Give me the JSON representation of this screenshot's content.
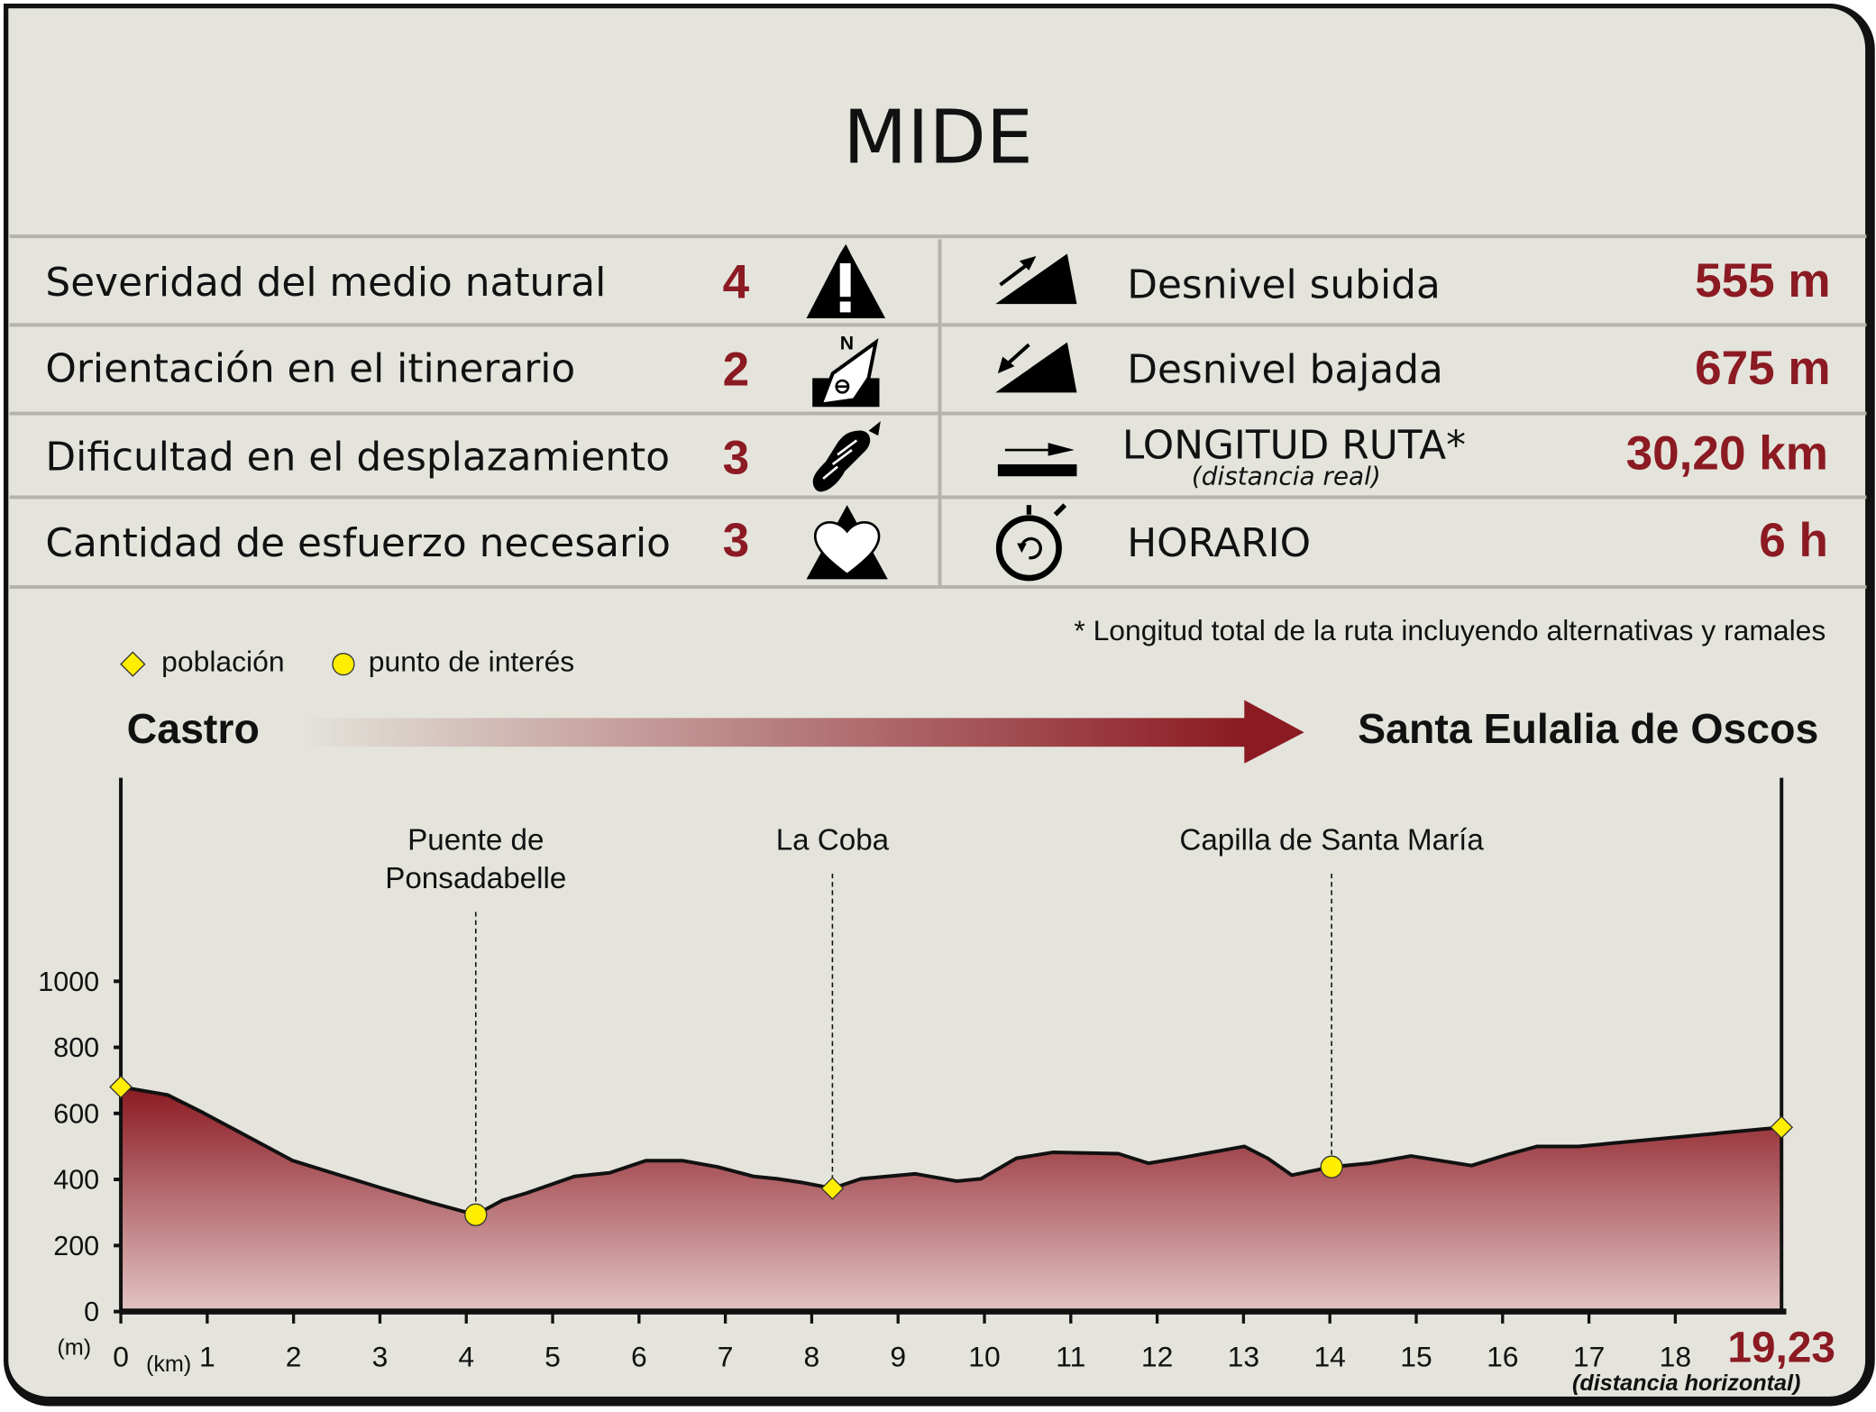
{
  "title": "MIDE",
  "mide": [
    {
      "label": "Severidad del medio natural",
      "value": "4",
      "icon": "warning-mountain-icon"
    },
    {
      "label": "Orientación en el itinerario",
      "value": "2",
      "icon": "compass-icon"
    },
    {
      "label": "Dificultad en el desplazamiento",
      "value": "3",
      "icon": "boot-sole-icon"
    },
    {
      "label": "Cantidad de esfuerzo necesario",
      "value": "3",
      "icon": "heart-mountain-icon"
    }
  ],
  "stats": [
    {
      "label": "Desnivel subida",
      "value": "555 m",
      "icon": "ascent-icon"
    },
    {
      "label": "Desnivel bajada",
      "value": "675 m",
      "icon": "descent-icon"
    },
    {
      "label": "LONGITUD RUTA*",
      "sublabel": "(distancia real)",
      "value": "30,20 km",
      "icon": "length-icon"
    },
    {
      "label": "HORARIO",
      "value": "6 h",
      "icon": "stopwatch-icon"
    }
  ],
  "footnote": "* Longitud total de la ruta incluyendo alternativas y ramales",
  "legend": {
    "town": "población",
    "poi": "punto de interés"
  },
  "route": {
    "start": "Castro",
    "end": "Santa Eulalia de Oscos"
  },
  "colors": {
    "accent": "#8b1a22",
    "background": "#e4e4dc",
    "marker": "#ffee00"
  },
  "chart_data": {
    "type": "area",
    "xlabel": "(km)",
    "ylabel": "(m)",
    "xlim": [
      0,
      19.23
    ],
    "ylim": [
      0,
      1000
    ],
    "xticks": [
      "0",
      "1",
      "2",
      "3",
      "4",
      "5",
      "6",
      "7",
      "8",
      "9",
      "10",
      "11",
      "12",
      "13",
      "14",
      "15",
      "16",
      "17",
      "18"
    ],
    "yticks": [
      "0",
      "200",
      "400",
      "600",
      "800",
      "1000"
    ],
    "x_end_label": "19,23",
    "x_end_sublabel": "(distancia horizontal)",
    "grid": false,
    "profile": {
      "x": [
        0,
        0.54,
        0.96,
        1.99,
        3.03,
        3.59,
        4.11,
        4.42,
        4.7,
        5.25,
        5.66,
        6.08,
        6.5,
        6.91,
        7.33,
        7.6,
        7.88,
        8.24,
        8.57,
        9.2,
        9.68,
        9.96,
        10.37,
        10.79,
        11.55,
        11.9,
        12.31,
        13.01,
        13.28,
        13.56,
        14.02,
        14.46,
        14.94,
        15.64,
        16.05,
        16.4,
        16.88,
        19.23
      ],
      "y": [
        680,
        656,
        601,
        457,
        373,
        330,
        293,
        337,
        359,
        409,
        420,
        457,
        457,
        438,
        409,
        402,
        391,
        373,
        402,
        417,
        395,
        402,
        464,
        482,
        478,
        449,
        467,
        500,
        464,
        413,
        438,
        449,
        471,
        442,
        475,
        500,
        500,
        558
      ]
    },
    "markers": [
      {
        "type": "población",
        "x": 0,
        "y": 680,
        "label": ""
      },
      {
        "type": "punto de interés",
        "x": 4.11,
        "y": 293,
        "label": "Puente de\nPonsadabelle"
      },
      {
        "type": "población",
        "x": 8.24,
        "y": 373,
        "label": "La Coba"
      },
      {
        "type": "punto de interés",
        "x": 14.02,
        "y": 438,
        "label": "Capilla de Santa María"
      },
      {
        "type": "población",
        "x": 19.23,
        "y": 558,
        "label": ""
      }
    ]
  }
}
